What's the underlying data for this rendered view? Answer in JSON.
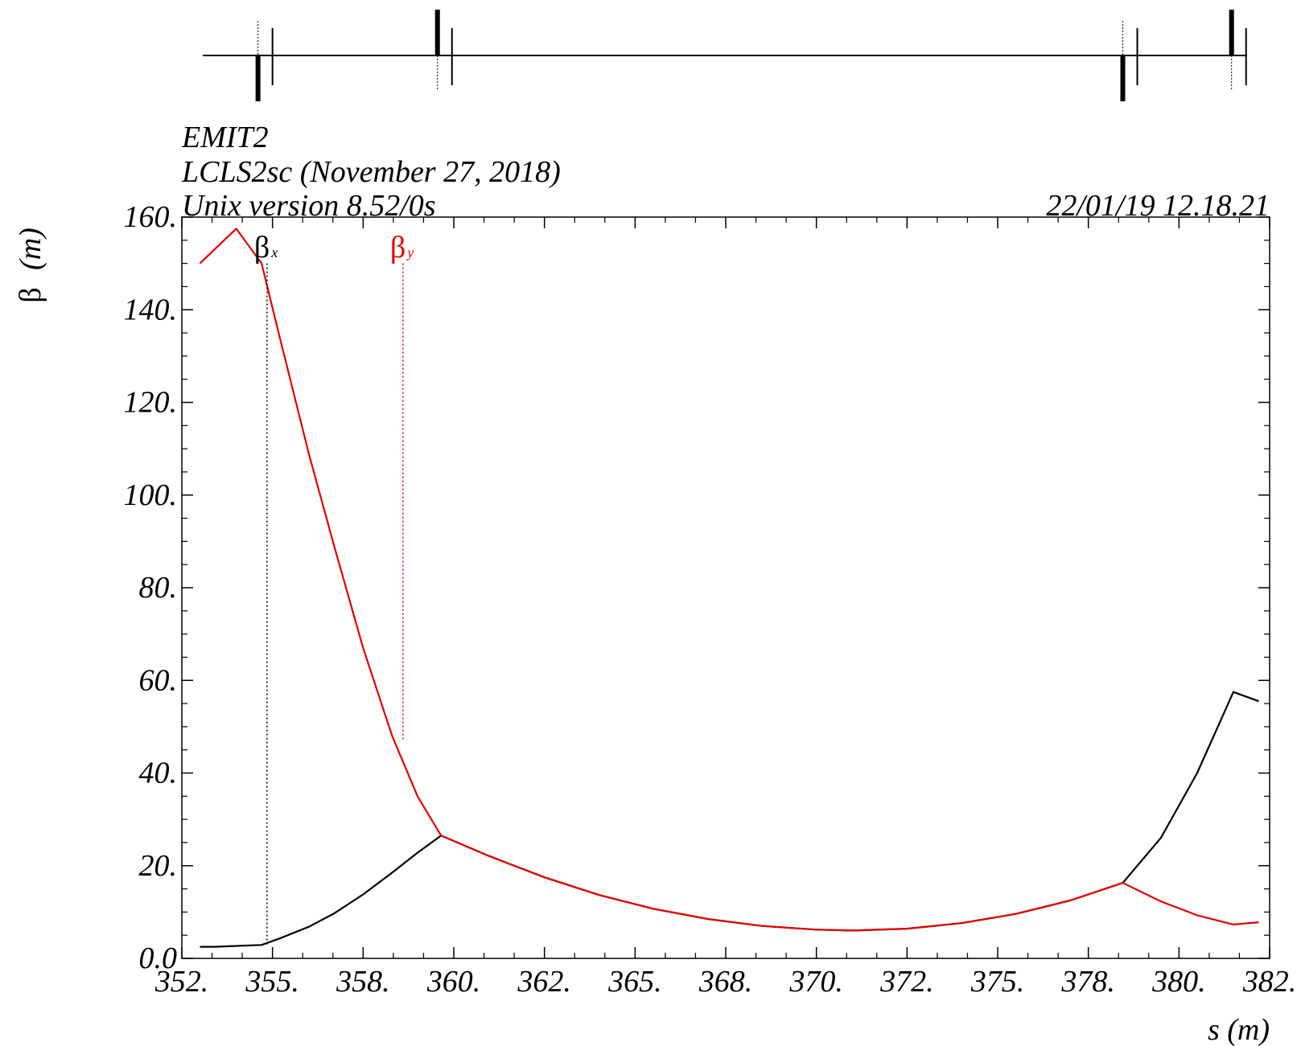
{
  "header": {
    "program": "EMIT2",
    "lattice": "LCLS2sc (November 27, 2018)",
    "version": "Unix version 8.52/0s",
    "timestamp": "22/01/19  12.18.21"
  },
  "colors": {
    "beta_x": "#000000",
    "beta_y": "#e00000",
    "axes": "#000000",
    "background": "#ffffff"
  },
  "chart_data": {
    "type": "line",
    "xlabel": "s (m)",
    "ylabel_symbol": "β",
    "ylabel_unit": "(m)",
    "xlim": [
      352.5,
      382.5
    ],
    "ylim": [
      0,
      160
    ],
    "x_ticks": [
      {
        "value": 352.5,
        "label": "352."
      },
      {
        "value": 355,
        "label": "355."
      },
      {
        "value": 357.5,
        "label": "358."
      },
      {
        "value": 360,
        "label": "360."
      },
      {
        "value": 362.5,
        "label": "362."
      },
      {
        "value": 365,
        "label": "365."
      },
      {
        "value": 367.5,
        "label": "368."
      },
      {
        "value": 370,
        "label": "370."
      },
      {
        "value": 372.5,
        "label": "372."
      },
      {
        "value": 375,
        "label": "375."
      },
      {
        "value": 377.5,
        "label": "378."
      },
      {
        "value": 380,
        "label": "380."
      },
      {
        "value": 382.5,
        "label": "382."
      }
    ],
    "y_ticks": [
      {
        "value": 0,
        "label": "0.0"
      },
      {
        "value": 20,
        "label": "20."
      },
      {
        "value": 40,
        "label": "40."
      },
      {
        "value": 60,
        "label": "60."
      },
      {
        "value": 80,
        "label": "80."
      },
      {
        "value": 100,
        "label": "100."
      },
      {
        "value": 120,
        "label": "120."
      },
      {
        "value": 140,
        "label": "140."
      },
      {
        "value": 160,
        "label": "160."
      }
    ],
    "legend": [
      {
        "symbol": "β",
        "subscript": "x",
        "color": "#000000",
        "marker_s": 354.85,
        "marker_top": 150,
        "marker_bottom": 2.9
      },
      {
        "symbol": "β",
        "subscript": "y",
        "color": "#e00000",
        "marker_s": 358.6,
        "marker_top": 150,
        "marker_bottom": 47
      }
    ],
    "series": [
      {
        "name": "βx",
        "color": "#000000",
        "points": [
          [
            353.0,
            2.5
          ],
          [
            353.4,
            2.5
          ],
          [
            354.7,
            2.9
          ],
          [
            355.2,
            4.3
          ],
          [
            356.0,
            6.8
          ],
          [
            356.7,
            9.7
          ],
          [
            357.5,
            13.8
          ],
          [
            358.3,
            18.5
          ],
          [
            359.0,
            22.8
          ],
          [
            359.65,
            26.5
          ],
          [
            361.0,
            22.0
          ],
          [
            362.5,
            17.5
          ],
          [
            364.0,
            13.7
          ],
          [
            365.5,
            10.7
          ],
          [
            367.0,
            8.5
          ],
          [
            368.5,
            7.0
          ],
          [
            370.0,
            6.2
          ],
          [
            371.0,
            6.0
          ],
          [
            372.5,
            6.4
          ],
          [
            374.0,
            7.6
          ],
          [
            375.5,
            9.6
          ],
          [
            377.0,
            12.5
          ],
          [
            378.45,
            16.3
          ],
          [
            379.5,
            26.0
          ],
          [
            380.5,
            40.0
          ],
          [
            381.5,
            57.5
          ],
          [
            382.2,
            55.5
          ]
        ]
      },
      {
        "name": "βy",
        "color": "#e00000",
        "points": [
          [
            353.0,
            150.0
          ],
          [
            354.0,
            157.5
          ],
          [
            354.7,
            150.0
          ],
          [
            355.2,
            134.0
          ],
          [
            356.0,
            109.0
          ],
          [
            356.7,
            89.0
          ],
          [
            357.5,
            67.0
          ],
          [
            358.3,
            48.0
          ],
          [
            359.0,
            35.0
          ],
          [
            359.65,
            26.5
          ],
          [
            361.0,
            22.0
          ],
          [
            362.5,
            17.5
          ],
          [
            364.0,
            13.7
          ],
          [
            365.5,
            10.7
          ],
          [
            367.0,
            8.5
          ],
          [
            368.5,
            7.0
          ],
          [
            370.0,
            6.2
          ],
          [
            371.0,
            6.0
          ],
          [
            372.5,
            6.4
          ],
          [
            374.0,
            7.6
          ],
          [
            375.5,
            9.6
          ],
          [
            377.0,
            12.5
          ],
          [
            378.45,
            16.3
          ],
          [
            379.5,
            12.3
          ],
          [
            380.5,
            9.3
          ],
          [
            381.5,
            7.3
          ],
          [
            382.2,
            7.8
          ]
        ]
      }
    ],
    "lattice_elements": [
      {
        "type": "quad",
        "s": 354.6,
        "polarity": "down",
        "marker": true
      },
      {
        "type": "thin",
        "s": 355.0
      },
      {
        "type": "quad",
        "s": 359.55,
        "polarity": "up",
        "marker": true
      },
      {
        "type": "thin",
        "s": 359.95
      },
      {
        "type": "quad",
        "s": 378.45,
        "polarity": "down",
        "marker": true
      },
      {
        "type": "thin",
        "s": 378.85
      },
      {
        "type": "quad",
        "s": 381.45,
        "polarity": "up",
        "marker": true
      },
      {
        "type": "thin",
        "s": 381.85
      }
    ],
    "grid": false,
    "legend_position": "top-left"
  }
}
